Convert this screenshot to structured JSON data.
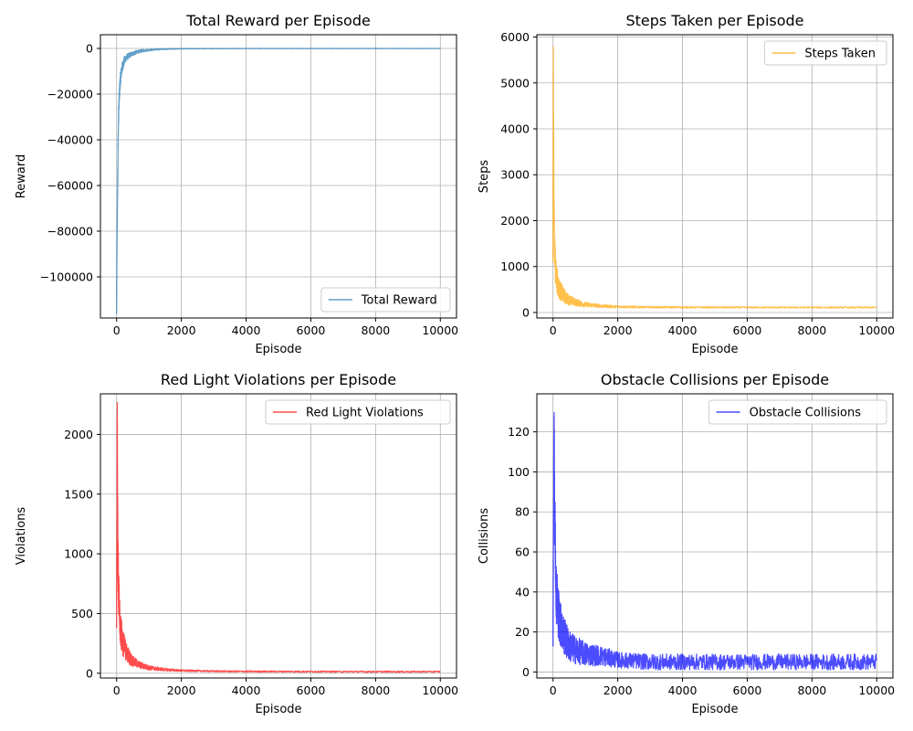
{
  "chart_data": [
    {
      "type": "line",
      "title": "Total Reward per Episode",
      "xlabel": "Episode",
      "ylabel": "Reward",
      "xlim": [
        -500,
        10500
      ],
      "ylim": [
        -118000,
        6000
      ],
      "xticks": [
        0,
        2000,
        4000,
        6000,
        8000,
        10000
      ],
      "yticks": [
        0,
        -20000,
        -40000,
        -60000,
        -80000,
        -100000
      ],
      "grid": true,
      "legend_position": "bottom-right",
      "series": [
        {
          "name": "Total Reward",
          "color": "#1f77b4",
          "x": [
            0,
            10,
            20,
            30,
            40,
            50,
            60,
            80,
            100,
            130,
            160,
            200,
            250,
            300,
            400,
            500,
            650,
            800,
            1000,
            1300,
            1600,
            2000,
            3000,
            4000,
            6000,
            8000,
            10000
          ],
          "y": [
            -112000,
            -89000,
            -75000,
            -62000,
            -50000,
            -38000,
            -30000,
            -22000,
            -16000,
            -12000,
            -9000,
            -7000,
            -5000,
            -4000,
            -3000,
            -2200,
            -1500,
            -1000,
            -700,
            -400,
            -250,
            -150,
            -80,
            -60,
            -50,
            -40,
            -40
          ],
          "spread": [
            8000,
            8000,
            8000,
            7000,
            6000,
            6000,
            5000,
            4000,
            3500,
            3000,
            2500,
            2200,
            1800,
            1500,
            1200,
            1000,
            800,
            600,
            400,
            300,
            200,
            150,
            100,
            80,
            70,
            60,
            60
          ]
        }
      ]
    },
    {
      "type": "line",
      "title": "Steps Taken per Episode",
      "xlabel": "Episode",
      "ylabel": "Steps",
      "xlim": [
        -500,
        10500
      ],
      "ylim": [
        -120,
        6050
      ],
      "xticks": [
        0,
        2000,
        4000,
        6000,
        8000,
        10000
      ],
      "yticks": [
        0,
        1000,
        2000,
        3000,
        4000,
        5000,
        6000
      ],
      "grid": true,
      "legend_position": "top-right",
      "series": [
        {
          "name": "Steps Taken",
          "color": "#ffa500",
          "x": [
            0,
            10,
            20,
            30,
            40,
            60,
            80,
            100,
            150,
            200,
            300,
            400,
            500,
            700,
            1000,
            1500,
            2000,
            3000,
            4000,
            6000,
            8000,
            10000
          ],
          "y": [
            1200,
            5750,
            3600,
            2400,
            1800,
            1200,
            900,
            800,
            600,
            500,
            400,
            320,
            270,
            220,
            170,
            140,
            125,
            115,
            112,
            110,
            108,
            108
          ],
          "spread": [
            300,
            300,
            600,
            500,
            450,
            400,
            350,
            300,
            260,
            220,
            170,
            140,
            110,
            80,
            55,
            35,
            25,
            20,
            18,
            16,
            16,
            16
          ]
        }
      ]
    },
    {
      "type": "line",
      "title": "Red Light Violations per Episode",
      "xlabel": "Episode",
      "ylabel": "Violations",
      "xlim": [
        -500,
        10500
      ],
      "ylim": [
        -40,
        2340
      ],
      "xticks": [
        0,
        2000,
        4000,
        6000,
        8000,
        10000
      ],
      "yticks": [
        0,
        500,
        1000,
        1500,
        2000
      ],
      "grid": true,
      "legend_position": "top-right",
      "series": [
        {
          "name": "Red Light Violations",
          "color": "#ff0000",
          "x": [
            0,
            20,
            30,
            40,
            60,
            80,
            100,
            150,
            200,
            300,
            400,
            500,
            700,
            1000,
            1500,
            2000,
            3000,
            4000,
            6000,
            8000,
            10000
          ],
          "y": [
            500,
            2260,
            1500,
            1000,
            700,
            550,
            420,
            320,
            250,
            180,
            130,
            100,
            70,
            45,
            30,
            22,
            17,
            15,
            14,
            13,
            13
          ],
          "spread": [
            200,
            200,
            300,
            250,
            220,
            200,
            170,
            140,
            110,
            80,
            60,
            45,
            30,
            20,
            12,
            8,
            6,
            6,
            6,
            6,
            6
          ]
        }
      ]
    },
    {
      "type": "line",
      "title": "Obstacle Collisions per Episode",
      "xlabel": "Episode",
      "ylabel": "Collisions",
      "xlim": [
        -500,
        10500
      ],
      "ylim": [
        -3,
        139
      ],
      "xticks": [
        0,
        2000,
        4000,
        6000,
        8000,
        10000
      ],
      "yticks": [
        0,
        20,
        40,
        60,
        80,
        100,
        120
      ],
      "grid": true,
      "legend_position": "top-right",
      "series": [
        {
          "name": "Obstacle Collisions",
          "color": "#0000ff",
          "x": [
            0,
            30,
            50,
            80,
            100,
            150,
            200,
            300,
            400,
            500,
            700,
            1000,
            1500,
            2000,
            3000,
            4000,
            6000,
            8000,
            10000
          ],
          "y": [
            20,
            132,
            80,
            55,
            40,
            32,
            26,
            20,
            16,
            13,
            11,
            9,
            8,
            6,
            5,
            5,
            5,
            5,
            5
          ],
          "spread": [
            10,
            10,
            20,
            18,
            16,
            14,
            12,
            10,
            9,
            8,
            7,
            6,
            5,
            4,
            4,
            4,
            4,
            4,
            4
          ]
        }
      ]
    }
  ]
}
